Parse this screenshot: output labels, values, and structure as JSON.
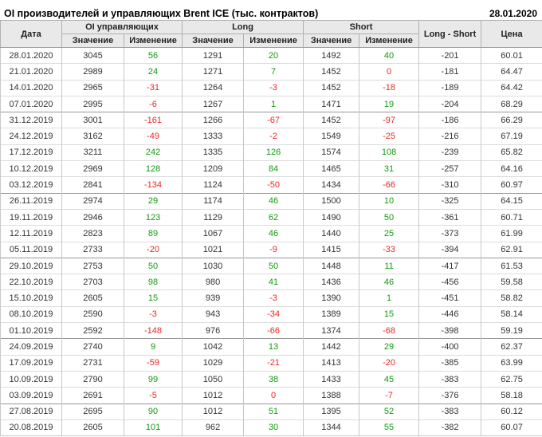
{
  "title": "OI производителей и управляющих Brent ICE (тыс. контрактов)",
  "report_date": "28.01.2020",
  "colors": {
    "positive_change": "#109b10",
    "negative_change": "#ee2626",
    "header_bg": "#e9e9e9",
    "text": "#333333"
  },
  "table": {
    "headers": {
      "date": "Дата",
      "group_oi": "OI управляющих",
      "group_long": "Long",
      "group_short": "Short",
      "long_short": "Long - Short",
      "price": "Цена",
      "value": "Значение",
      "change": "Изменение"
    },
    "rows": [
      {
        "date": "28.01.2020",
        "oi_value": "3045",
        "oi_change": 56,
        "long_value": "1291",
        "long_change": 20,
        "short_value": "1492",
        "short_change": 40,
        "long_short": "-201",
        "price": "60.01"
      },
      {
        "date": "21.01.2020",
        "oi_value": "2989",
        "oi_change": 24,
        "long_value": "1271",
        "long_change": 7,
        "short_value": "1452",
        "short_change": 0,
        "long_short": "-181",
        "price": "64.47"
      },
      {
        "date": "14.01.2020",
        "oi_value": "2965",
        "oi_change": -31,
        "long_value": "1264",
        "long_change": -3,
        "short_value": "1452",
        "short_change": -18,
        "long_short": "-189",
        "price": "64.42"
      },
      {
        "date": "07.01.2020",
        "oi_value": "2995",
        "oi_change": -6,
        "long_value": "1267",
        "long_change": 1,
        "short_value": "1471",
        "short_change": 19,
        "long_short": "-204",
        "price": "68.29"
      },
      {
        "date": "31.12.2019",
        "oi_value": "3001",
        "oi_change": -161,
        "long_value": "1266",
        "long_change": -67,
        "short_value": "1452",
        "short_change": -97,
        "long_short": "-186",
        "price": "66.29"
      },
      {
        "date": "24.12.2019",
        "oi_value": "3162",
        "oi_change": -49,
        "long_value": "1333",
        "long_change": -2,
        "short_value": "1549",
        "short_change": -25,
        "long_short": "-216",
        "price": "67.19"
      },
      {
        "date": "17.12.2019",
        "oi_value": "3211",
        "oi_change": 242,
        "long_value": "1335",
        "long_change": 126,
        "short_value": "1574",
        "short_change": 108,
        "long_short": "-239",
        "price": "65.82"
      },
      {
        "date": "10.12.2019",
        "oi_value": "2969",
        "oi_change": 128,
        "long_value": "1209",
        "long_change": 84,
        "short_value": "1465",
        "short_change": 31,
        "long_short": "-257",
        "price": "64.16"
      },
      {
        "date": "03.12.2019",
        "oi_value": "2841",
        "oi_change": -134,
        "long_value": "1124",
        "long_change": -50,
        "short_value": "1434",
        "short_change": -66,
        "long_short": "-310",
        "price": "60.97"
      },
      {
        "date": "26.11.2019",
        "oi_value": "2974",
        "oi_change": 29,
        "long_value": "1174",
        "long_change": 46,
        "short_value": "1500",
        "short_change": 10,
        "long_short": "-325",
        "price": "64.15"
      },
      {
        "date": "19.11.2019",
        "oi_value": "2946",
        "oi_change": 123,
        "long_value": "1129",
        "long_change": 62,
        "short_value": "1490",
        "short_change": 50,
        "long_short": "-361",
        "price": "60.71"
      },
      {
        "date": "12.11.2019",
        "oi_value": "2823",
        "oi_change": 89,
        "long_value": "1067",
        "long_change": 46,
        "short_value": "1440",
        "short_change": 25,
        "long_short": "-373",
        "price": "61.99"
      },
      {
        "date": "05.11.2019",
        "oi_value": "2733",
        "oi_change": -20,
        "long_value": "1021",
        "long_change": -9,
        "short_value": "1415",
        "short_change": -33,
        "long_short": "-394",
        "price": "62.91"
      },
      {
        "date": "29.10.2019",
        "oi_value": "2753",
        "oi_change": 50,
        "long_value": "1030",
        "long_change": 50,
        "short_value": "1448",
        "short_change": 11,
        "long_short": "-417",
        "price": "61.53"
      },
      {
        "date": "22.10.2019",
        "oi_value": "2703",
        "oi_change": 98,
        "long_value": "980",
        "long_change": 41,
        "short_value": "1436",
        "short_change": 46,
        "long_short": "-456",
        "price": "59.58"
      },
      {
        "date": "15.10.2019",
        "oi_value": "2605",
        "oi_change": 15,
        "long_value": "939",
        "long_change": -3,
        "short_value": "1390",
        "short_change": 1,
        "long_short": "-451",
        "price": "58.82"
      },
      {
        "date": "08.10.2019",
        "oi_value": "2590",
        "oi_change": -3,
        "long_value": "943",
        "long_change": -34,
        "short_value": "1389",
        "short_change": 15,
        "long_short": "-446",
        "price": "58.14"
      },
      {
        "date": "01.10.2019",
        "oi_value": "2592",
        "oi_change": -148,
        "long_value": "976",
        "long_change": -66,
        "short_value": "1374",
        "short_change": -68,
        "long_short": "-398",
        "price": "59.19"
      },
      {
        "date": "24.09.2019",
        "oi_value": "2740",
        "oi_change": 9,
        "long_value": "1042",
        "long_change": 13,
        "short_value": "1442",
        "short_change": 29,
        "long_short": "-400",
        "price": "62.37"
      },
      {
        "date": "17.09.2019",
        "oi_value": "2731",
        "oi_change": -59,
        "long_value": "1029",
        "long_change": -21,
        "short_value": "1413",
        "short_change": -20,
        "long_short": "-385",
        "price": "63.99"
      },
      {
        "date": "10.09.2019",
        "oi_value": "2790",
        "oi_change": 99,
        "long_value": "1050",
        "long_change": 38,
        "short_value": "1433",
        "short_change": 45,
        "long_short": "-383",
        "price": "62.75"
      },
      {
        "date": "03.09.2019",
        "oi_value": "2691",
        "oi_change": -5,
        "long_value": "1012",
        "long_change": 0,
        "short_value": "1388",
        "short_change": -7,
        "long_short": "-376",
        "price": "58.18"
      },
      {
        "date": "27.08.2019",
        "oi_value": "2695",
        "oi_change": 90,
        "long_value": "1012",
        "long_change": 51,
        "short_value": "1395",
        "short_change": 52,
        "long_short": "-383",
        "price": "60.12"
      },
      {
        "date": "20.08.2019",
        "oi_value": "2605",
        "oi_change": 101,
        "long_value": "962",
        "long_change": 30,
        "short_value": "1344",
        "short_change": 55,
        "long_short": "-382",
        "price": "60.07"
      }
    ]
  }
}
